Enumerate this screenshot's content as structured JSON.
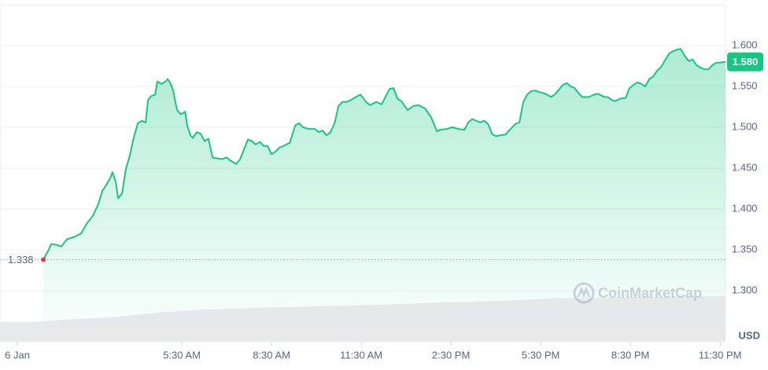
{
  "chart_data": {
    "type": "area",
    "color": "#16c784",
    "x": [
      0.87,
      1.05,
      1.13,
      1.32,
      1.47,
      1.66,
      1.92,
      2.13,
      2.32,
      2.53,
      2.71,
      2.84,
      2.97,
      3.11,
      3.18,
      3.29,
      3.37,
      3.5,
      3.63,
      3.76,
      3.89,
      4.03,
      4.16,
      4.29,
      4.37,
      4.47,
      4.61,
      4.68,
      4.82,
      4.95,
      5.03,
      5.13,
      5.21,
      5.34,
      5.47,
      5.61,
      5.68,
      5.79,
      5.87,
      6.0,
      6.13,
      6.26,
      6.39,
      6.53,
      6.66,
      6.84,
      7.0,
      7.13,
      7.32,
      7.45,
      7.58,
      7.71,
      7.84,
      7.97,
      8.11,
      8.24,
      8.37,
      8.5,
      8.63,
      8.76,
      8.89,
      9.11,
      9.29,
      9.42,
      9.55,
      9.74,
      9.95,
      10.08,
      10.21,
      10.34,
      10.47,
      10.61,
      10.74,
      10.87,
      11.0,
      11.13,
      11.32,
      11.47,
      11.66,
      11.79,
      12.0,
      12.18,
      12.32,
      12.45,
      12.58,
      12.71,
      12.84,
      13.05,
      13.24,
      13.42,
      13.63,
      13.84,
      14.03,
      14.16,
      14.37,
      14.55,
      14.74,
      14.95,
      15.08,
      15.21,
      15.47,
      15.61,
      15.74,
      15.87,
      16.0,
      16.13,
      16.32,
      16.47,
      16.66,
      16.79,
      16.92,
      17.05,
      17.18,
      17.32,
      17.45,
      17.58,
      17.71,
      17.84,
      17.97,
      18.11,
      18.24,
      18.37,
      18.5,
      18.63,
      18.76,
      18.89,
      19.11,
      19.29,
      19.42,
      19.63,
      19.74,
      19.89,
      20.0,
      20.16,
      20.34,
      20.47,
      20.61,
      20.74,
      20.87,
      21.0,
      21.13,
      21.26,
      21.39,
      21.53,
      21.66,
      21.79,
      21.92,
      22.05,
      22.18,
      22.32,
      22.45,
      22.58,
      22.71,
      22.84,
      22.97,
      23.11,
      23.24,
      23.37,
      23.5,
      23.68
    ],
    "values": [
      1.338,
      1.35,
      1.357,
      1.356,
      1.354,
      1.363,
      1.366,
      1.37,
      1.382,
      1.392,
      1.406,
      1.422,
      1.429,
      1.438,
      1.445,
      1.433,
      1.413,
      1.419,
      1.449,
      1.465,
      1.487,
      1.505,
      1.508,
      1.506,
      1.533,
      1.538,
      1.54,
      1.556,
      1.553,
      1.556,
      1.559,
      1.553,
      1.545,
      1.521,
      1.516,
      1.519,
      1.502,
      1.49,
      1.487,
      1.494,
      1.492,
      1.483,
      1.486,
      1.463,
      1.462,
      1.461,
      1.463,
      1.459,
      1.455,
      1.461,
      1.473,
      1.485,
      1.483,
      1.479,
      1.482,
      1.477,
      1.477,
      1.467,
      1.47,
      1.475,
      1.477,
      1.481,
      1.502,
      1.505,
      1.5,
      1.498,
      1.498,
      1.494,
      1.496,
      1.49,
      1.494,
      1.505,
      1.526,
      1.531,
      1.531,
      1.533,
      1.537,
      1.54,
      1.531,
      1.527,
      1.531,
      1.528,
      1.538,
      1.547,
      1.548,
      1.535,
      1.532,
      1.521,
      1.526,
      1.527,
      1.523,
      1.512,
      1.495,
      1.497,
      1.498,
      1.5,
      1.498,
      1.497,
      1.506,
      1.51,
      1.506,
      1.508,
      1.504,
      1.492,
      1.489,
      1.49,
      1.491,
      1.497,
      1.504,
      1.506,
      1.531,
      1.54,
      1.544,
      1.545,
      1.543,
      1.542,
      1.54,
      1.537,
      1.54,
      1.546,
      1.552,
      1.554,
      1.55,
      1.548,
      1.542,
      1.537,
      1.537,
      1.54,
      1.541,
      1.537,
      1.537,
      1.533,
      1.532,
      1.535,
      1.536,
      1.548,
      1.552,
      1.555,
      1.553,
      1.55,
      1.559,
      1.562,
      1.569,
      1.574,
      1.582,
      1.59,
      1.593,
      1.595,
      1.596,
      1.587,
      1.581,
      1.583,
      1.576,
      1.573,
      1.571,
      1.571,
      1.576,
      1.579,
      1.579,
      1.58
    ],
    "xlim": [
      -0.58,
      23.68
    ],
    "xticks": [
      {
        "value": 0,
        "label": "6 Jan"
      },
      {
        "value": 5.5,
        "label": "5:30 AM"
      },
      {
        "value": 8.5,
        "label": "8:30 AM"
      },
      {
        "value": 11.5,
        "label": "11:30 AM"
      },
      {
        "value": 14.5,
        "label": "2:30 PM"
      },
      {
        "value": 17.5,
        "label": "5:30 PM"
      },
      {
        "value": 20.5,
        "label": "8:30 PM"
      },
      {
        "value": 23.5,
        "label": "11:30 PM"
      }
    ],
    "ylim": [
      1.25,
      1.65
    ],
    "yticks": [
      {
        "value": 1.3,
        "label": "1.300"
      },
      {
        "value": 1.35,
        "label": "1.350"
      },
      {
        "value": 1.4,
        "label": "1.400"
      },
      {
        "value": 1.45,
        "label": "1.450"
      },
      {
        "value": 1.5,
        "label": "1.500"
      },
      {
        "value": 1.55,
        "label": "1.550"
      },
      {
        "value": 1.6,
        "label": "1.600"
      }
    ],
    "grid": true,
    "reference_line": {
      "value": 1.338,
      "label": "1.338"
    },
    "last_price": {
      "value": 1.58,
      "label": "1.580"
    },
    "y_unit": "USD",
    "watermark": "CoinMarketCap"
  }
}
